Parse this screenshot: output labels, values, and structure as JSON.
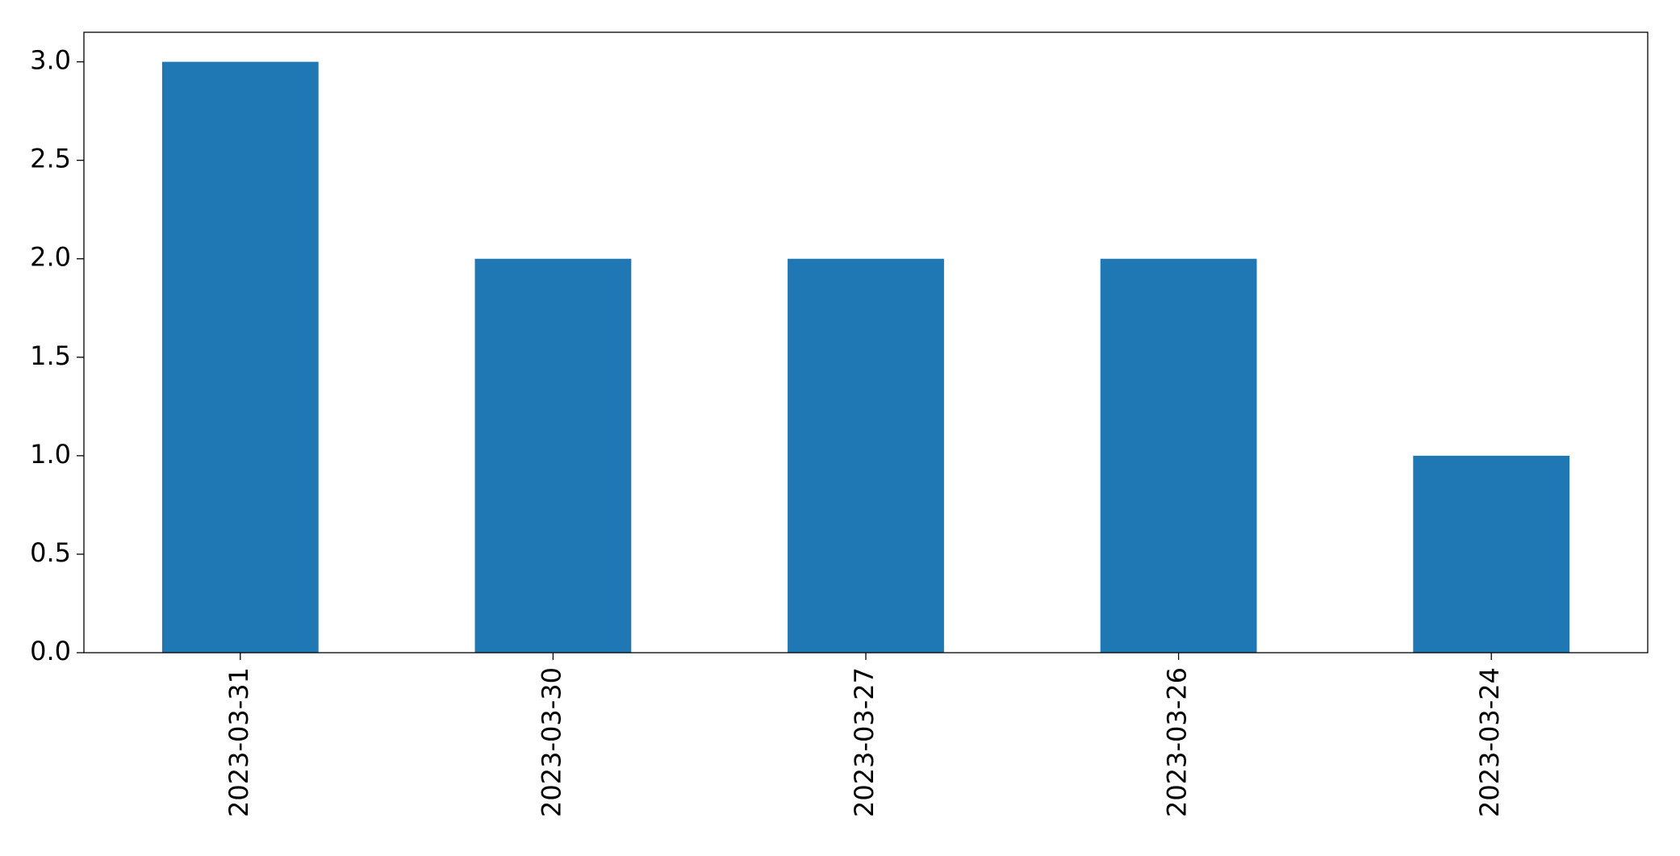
{
  "chart_data": {
    "type": "bar",
    "categories": [
      "2023-03-31",
      "2023-03-30",
      "2023-03-27",
      "2023-03-26",
      "2023-03-24"
    ],
    "values": [
      3,
      2,
      2,
      2,
      1
    ],
    "color": "#1f77b4",
    "ylim": [
      0,
      3.15
    ],
    "yticks": [
      {
        "value": 0,
        "label": "0.0"
      },
      {
        "value": 0.5,
        "label": "0.5"
      },
      {
        "value": 1,
        "label": "1.0"
      },
      {
        "value": 1.5,
        "label": "1.5"
      },
      {
        "value": 2,
        "label": "2.0"
      },
      {
        "value": 2.5,
        "label": "2.5"
      },
      {
        "value": 3,
        "label": "3.0"
      }
    ],
    "grid": false
  }
}
